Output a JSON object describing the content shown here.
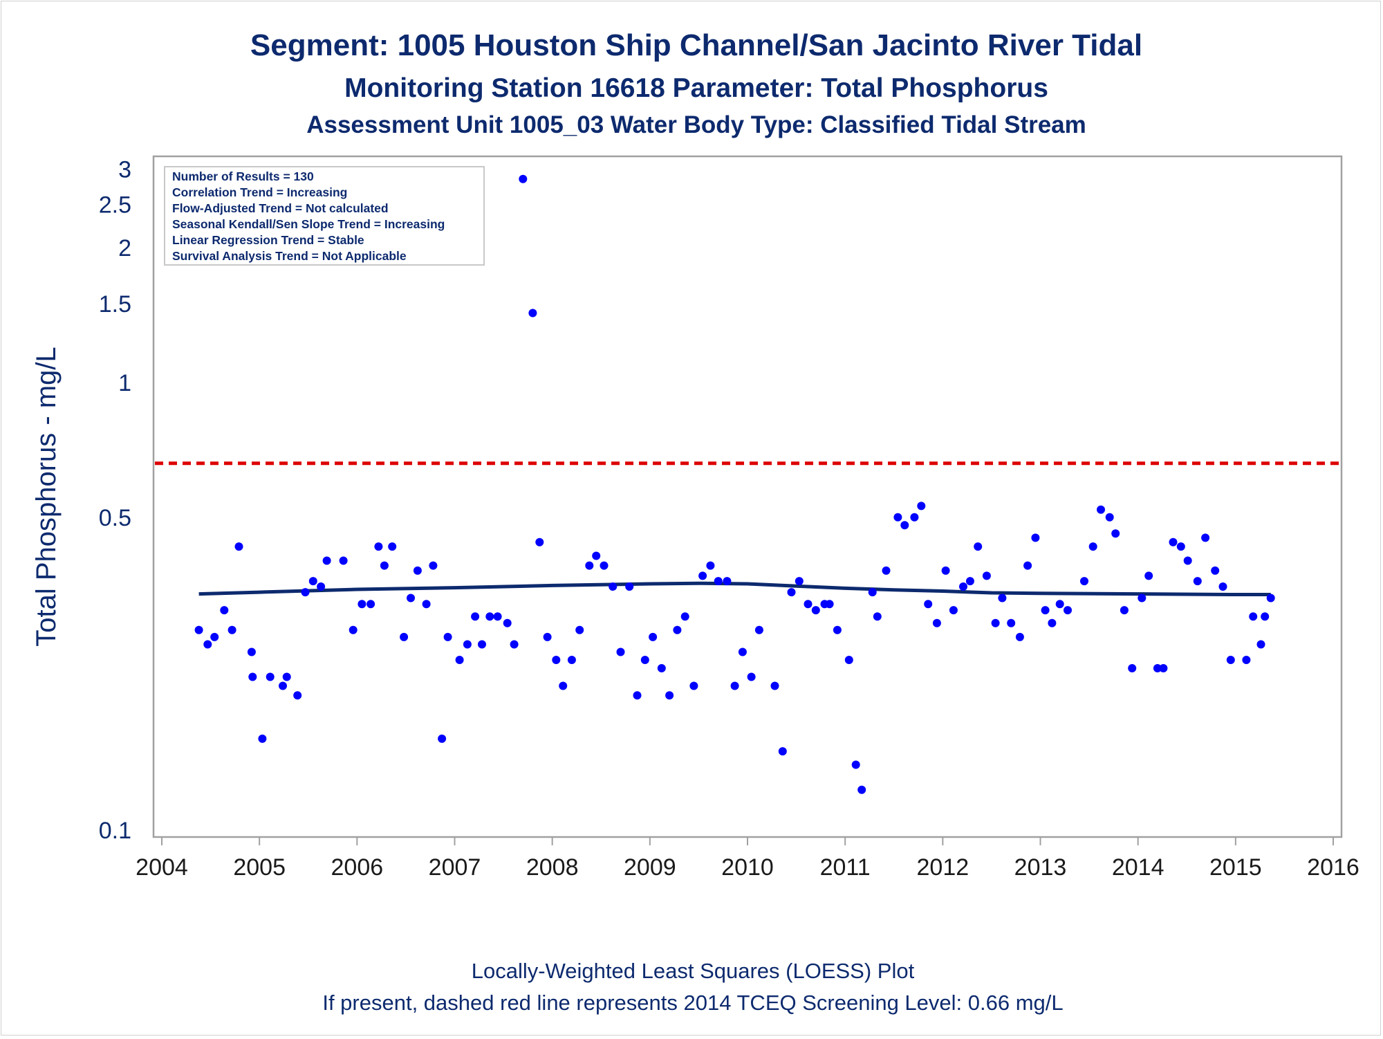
{
  "chart_data": {
    "type": "scatter",
    "title": "Segment: 1005  Houston Ship Channel/San Jacinto River Tidal",
    "subtitle": "Monitoring Station 16618 Parameter: Total Phosphorus",
    "subtitle2": "Assessment Unit 1005_03   Water Body Type: Classified Tidal Stream",
    "ylabel": "Total Phosphorus - mg/L",
    "xlabel": "",
    "y_scale": "log",
    "xlim": [
      2004,
      2016
    ],
    "ylim": [
      0.1,
      3
    ],
    "x_ticks": [
      "2004",
      "2005",
      "2006",
      "2007",
      "2008",
      "2009",
      "2010",
      "2011",
      "2012",
      "2013",
      "2014",
      "2015",
      "2016"
    ],
    "y_ticks": [
      "0.1",
      "0.5",
      "1",
      "1.5",
      "2",
      "2.5",
      "3"
    ],
    "grid": false,
    "legend": "none",
    "colors": {
      "points": "#0000ff",
      "loess": "#0d2a6e",
      "screening": "#dd0000",
      "frame": "#a0a0a0",
      "text": "#0d2a6e"
    },
    "stats_box": [
      "Number of Results = 130",
      "Correlation Trend = Increasing",
      "Flow-Adjusted Trend = Not calculated",
      "Seasonal Kendall/Sen Slope Trend = Increasing",
      "Linear Regression Trend = Stable",
      "Survival Analysis Trend = Not Applicable"
    ],
    "footnotes": [
      "Locally-Weighted Least Squares (LOESS) Plot",
      "If present, dashed red line represents 2014 TCEQ Screening Level: 0.66 mg/L"
    ],
    "screening_level": 0.66,
    "points": [
      {
        "x": 2004.38,
        "y": 0.28
      },
      {
        "x": 2004.47,
        "y": 0.26
      },
      {
        "x": 2004.54,
        "y": 0.27
      },
      {
        "x": 2004.64,
        "y": 0.31
      },
      {
        "x": 2004.72,
        "y": 0.28
      },
      {
        "x": 2004.79,
        "y": 0.43
      },
      {
        "x": 2004.92,
        "y": 0.25
      },
      {
        "x": 2004.93,
        "y": 0.22
      },
      {
        "x": 2005.03,
        "y": 0.16
      },
      {
        "x": 2005.11,
        "y": 0.22
      },
      {
        "x": 2005.24,
        "y": 0.21
      },
      {
        "x": 2005.28,
        "y": 0.22
      },
      {
        "x": 2005.39,
        "y": 0.2
      },
      {
        "x": 2005.47,
        "y": 0.34
      },
      {
        "x": 2005.55,
        "y": 0.36
      },
      {
        "x": 2005.63,
        "y": 0.35
      },
      {
        "x": 2005.69,
        "y": 0.4
      },
      {
        "x": 2005.86,
        "y": 0.4
      },
      {
        "x": 2005.96,
        "y": 0.28
      },
      {
        "x": 2006.05,
        "y": 0.32
      },
      {
        "x": 2006.14,
        "y": 0.32
      },
      {
        "x": 2006.22,
        "y": 0.43
      },
      {
        "x": 2006.28,
        "y": 0.39
      },
      {
        "x": 2006.36,
        "y": 0.43
      },
      {
        "x": 2006.48,
        "y": 0.27
      },
      {
        "x": 2006.55,
        "y": 0.33
      },
      {
        "x": 2006.62,
        "y": 0.38
      },
      {
        "x": 2006.71,
        "y": 0.32
      },
      {
        "x": 2006.78,
        "y": 0.39
      },
      {
        "x": 2006.87,
        "y": 0.16
      },
      {
        "x": 2006.93,
        "y": 0.27
      },
      {
        "x": 2007.05,
        "y": 0.24
      },
      {
        "x": 2007.13,
        "y": 0.26
      },
      {
        "x": 2007.21,
        "y": 0.3
      },
      {
        "x": 2007.28,
        "y": 0.26
      },
      {
        "x": 2007.36,
        "y": 0.3
      },
      {
        "x": 2007.44,
        "y": 0.3
      },
      {
        "x": 2007.54,
        "y": 0.29
      },
      {
        "x": 2007.61,
        "y": 0.26
      },
      {
        "x": 2007.7,
        "y": 2.85
      },
      {
        "x": 2007.8,
        "y": 1.43
      },
      {
        "x": 2007.87,
        "y": 0.44
      },
      {
        "x": 2007.95,
        "y": 0.27
      },
      {
        "x": 2008.04,
        "y": 0.24
      },
      {
        "x": 2008.11,
        "y": 0.21
      },
      {
        "x": 2008.2,
        "y": 0.24
      },
      {
        "x": 2008.28,
        "y": 0.28
      },
      {
        "x": 2008.38,
        "y": 0.39
      },
      {
        "x": 2008.45,
        "y": 0.41
      },
      {
        "x": 2008.53,
        "y": 0.39
      },
      {
        "x": 2008.62,
        "y": 0.35
      },
      {
        "x": 2008.7,
        "y": 0.25
      },
      {
        "x": 2008.79,
        "y": 0.35
      },
      {
        "x": 2008.87,
        "y": 0.2
      },
      {
        "x": 2008.95,
        "y": 0.24
      },
      {
        "x": 2009.03,
        "y": 0.27
      },
      {
        "x": 2009.12,
        "y": 0.23
      },
      {
        "x": 2009.2,
        "y": 0.2
      },
      {
        "x": 2009.28,
        "y": 0.28
      },
      {
        "x": 2009.36,
        "y": 0.3
      },
      {
        "x": 2009.45,
        "y": 0.21
      },
      {
        "x": 2009.54,
        "y": 0.37
      },
      {
        "x": 2009.62,
        "y": 0.39
      },
      {
        "x": 2009.7,
        "y": 0.36
      },
      {
        "x": 2009.79,
        "y": 0.36
      },
      {
        "x": 2009.87,
        "y": 0.21
      },
      {
        "x": 2009.95,
        "y": 0.25
      },
      {
        "x": 2010.04,
        "y": 0.22
      },
      {
        "x": 2010.12,
        "y": 0.28
      },
      {
        "x": 2010.28,
        "y": 0.21
      },
      {
        "x": 2010.36,
        "y": 0.15
      },
      {
        "x": 2010.45,
        "y": 0.34
      },
      {
        "x": 2010.53,
        "y": 0.36
      },
      {
        "x": 2010.62,
        "y": 0.32
      },
      {
        "x": 2010.7,
        "y": 0.31
      },
      {
        "x": 2010.79,
        "y": 0.32
      },
      {
        "x": 2010.84,
        "y": 0.32
      },
      {
        "x": 2010.92,
        "y": 0.28
      },
      {
        "x": 2011.04,
        "y": 0.24
      },
      {
        "x": 2011.11,
        "y": 0.14
      },
      {
        "x": 2011.17,
        "y": 0.123
      },
      {
        "x": 2011.28,
        "y": 0.34
      },
      {
        "x": 2011.33,
        "y": 0.3
      },
      {
        "x": 2011.42,
        "y": 0.38
      },
      {
        "x": 2011.54,
        "y": 0.5
      },
      {
        "x": 2011.61,
        "y": 0.48
      },
      {
        "x": 2011.71,
        "y": 0.5
      },
      {
        "x": 2011.78,
        "y": 0.53
      },
      {
        "x": 2011.85,
        "y": 0.32
      },
      {
        "x": 2011.94,
        "y": 0.29
      },
      {
        "x": 2012.03,
        "y": 0.38
      },
      {
        "x": 2012.11,
        "y": 0.31
      },
      {
        "x": 2012.21,
        "y": 0.35
      },
      {
        "x": 2012.28,
        "y": 0.36
      },
      {
        "x": 2012.36,
        "y": 0.43
      },
      {
        "x": 2012.45,
        "y": 0.37
      },
      {
        "x": 2012.54,
        "y": 0.29
      },
      {
        "x": 2012.61,
        "y": 0.33
      },
      {
        "x": 2012.7,
        "y": 0.29
      },
      {
        "x": 2012.79,
        "y": 0.27
      },
      {
        "x": 2012.87,
        "y": 0.39
      },
      {
        "x": 2012.95,
        "y": 0.45
      },
      {
        "x": 2013.05,
        "y": 0.31
      },
      {
        "x": 2013.12,
        "y": 0.29
      },
      {
        "x": 2013.2,
        "y": 0.32
      },
      {
        "x": 2013.28,
        "y": 0.31
      },
      {
        "x": 2013.45,
        "y": 0.36
      },
      {
        "x": 2013.54,
        "y": 0.43
      },
      {
        "x": 2013.62,
        "y": 0.52
      },
      {
        "x": 2013.71,
        "y": 0.5
      },
      {
        "x": 2013.77,
        "y": 0.46
      },
      {
        "x": 2013.86,
        "y": 0.31
      },
      {
        "x": 2013.94,
        "y": 0.23
      },
      {
        "x": 2014.04,
        "y": 0.33
      },
      {
        "x": 2014.11,
        "y": 0.37
      },
      {
        "x": 2014.2,
        "y": 0.23
      },
      {
        "x": 2014.26,
        "y": 0.23
      },
      {
        "x": 2014.36,
        "y": 0.44
      },
      {
        "x": 2014.44,
        "y": 0.43
      },
      {
        "x": 2014.51,
        "y": 0.4
      },
      {
        "x": 2014.61,
        "y": 0.36
      },
      {
        "x": 2014.69,
        "y": 0.45
      },
      {
        "x": 2014.79,
        "y": 0.38
      },
      {
        "x": 2014.87,
        "y": 0.35
      },
      {
        "x": 2014.95,
        "y": 0.24
      },
      {
        "x": 2015.11,
        "y": 0.24
      },
      {
        "x": 2015.18,
        "y": 0.3
      },
      {
        "x": 2015.26,
        "y": 0.26
      },
      {
        "x": 2015.3,
        "y": 0.3
      },
      {
        "x": 2015.36,
        "y": 0.33
      }
    ],
    "loess": [
      {
        "x": 2004.38,
        "y": 0.337
      },
      {
        "x": 2005.0,
        "y": 0.34
      },
      {
        "x": 2006.0,
        "y": 0.345
      },
      {
        "x": 2007.0,
        "y": 0.348
      },
      {
        "x": 2008.0,
        "y": 0.352
      },
      {
        "x": 2009.0,
        "y": 0.355
      },
      {
        "x": 2009.5,
        "y": 0.356
      },
      {
        "x": 2010.0,
        "y": 0.355
      },
      {
        "x": 2010.5,
        "y": 0.351
      },
      {
        "x": 2011.0,
        "y": 0.347
      },
      {
        "x": 2011.5,
        "y": 0.344
      },
      {
        "x": 2012.0,
        "y": 0.342
      },
      {
        "x": 2012.5,
        "y": 0.339
      },
      {
        "x": 2013.0,
        "y": 0.338
      },
      {
        "x": 2014.0,
        "y": 0.337
      },
      {
        "x": 2015.0,
        "y": 0.336
      },
      {
        "x": 2015.36,
        "y": 0.336
      }
    ]
  }
}
